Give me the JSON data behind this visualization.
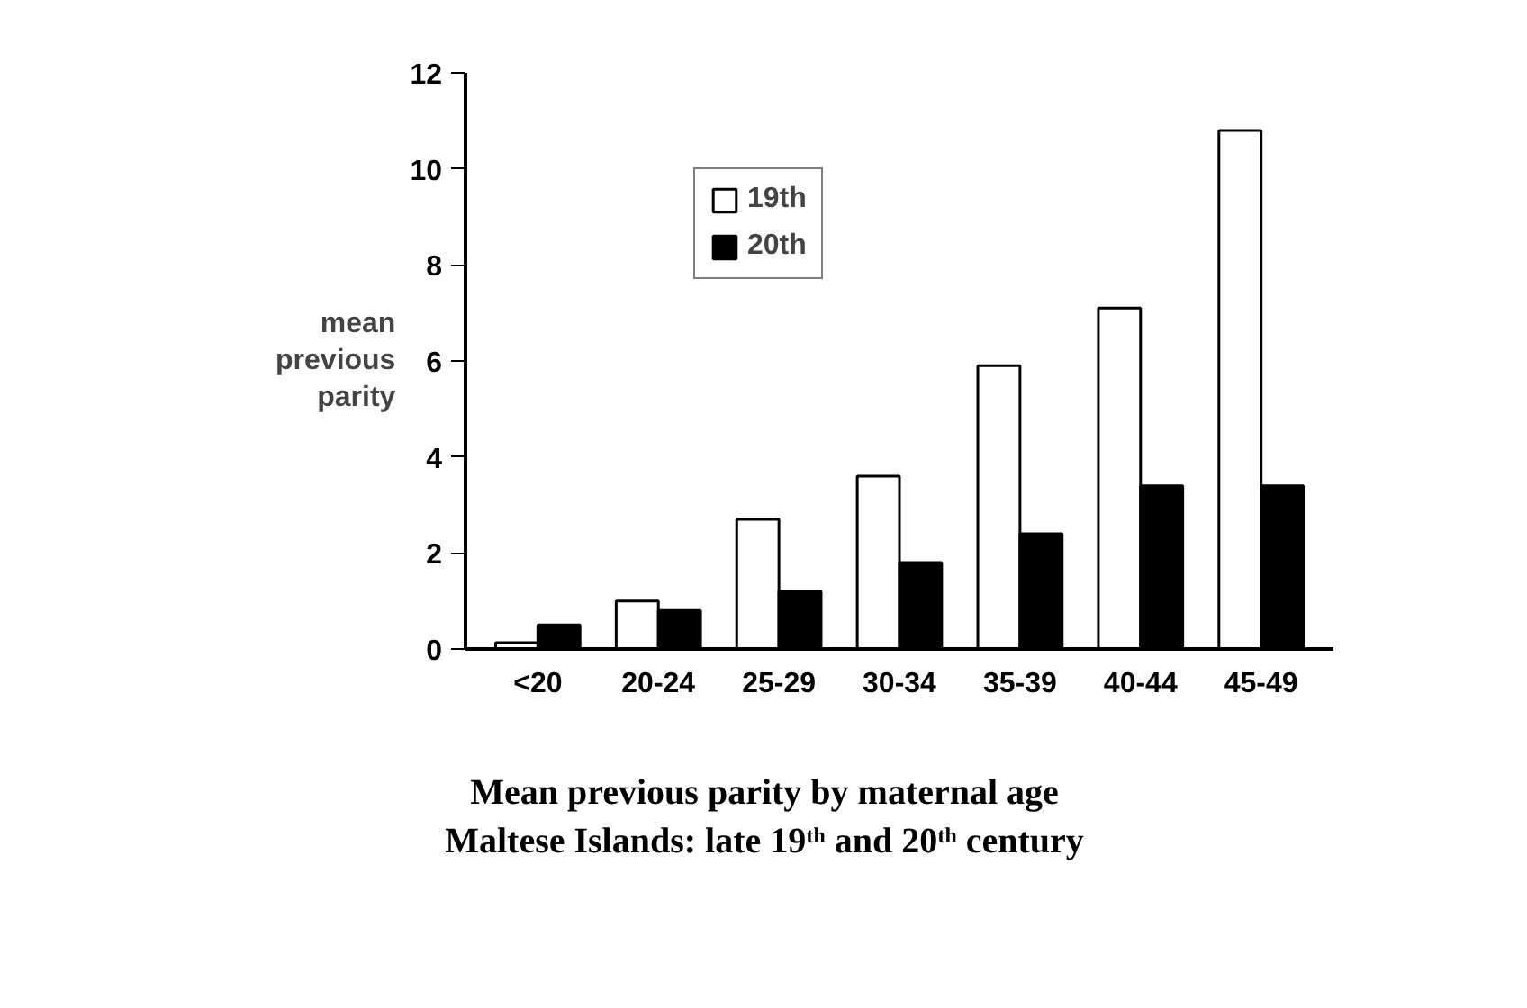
{
  "chart_data": {
    "type": "bar",
    "title": "Mean previous parity by maternal age",
    "subtitle": "Maltese Islands: late 19ᵗʰ and 20ᵗʰ century",
    "ylabel": "mean\nprevious\nparity",
    "categories": [
      "<20",
      "20-24",
      "25-29",
      "30-34",
      "35-39",
      "40-44",
      "45-49"
    ],
    "series": [
      {
        "name": "19th",
        "color": "#ffffff",
        "values": [
          0.13,
          1.0,
          2.7,
          3.6,
          5.9,
          7.1,
          10.8
        ]
      },
      {
        "name": "20th",
        "color": "#000000",
        "values": [
          0.5,
          0.8,
          1.2,
          1.8,
          2.4,
          3.4,
          3.4
        ]
      }
    ],
    "ylim": [
      0,
      12
    ],
    "yticks": [
      0,
      2,
      4,
      6,
      8,
      10,
      12
    ],
    "grid": false,
    "legend": "top left"
  }
}
